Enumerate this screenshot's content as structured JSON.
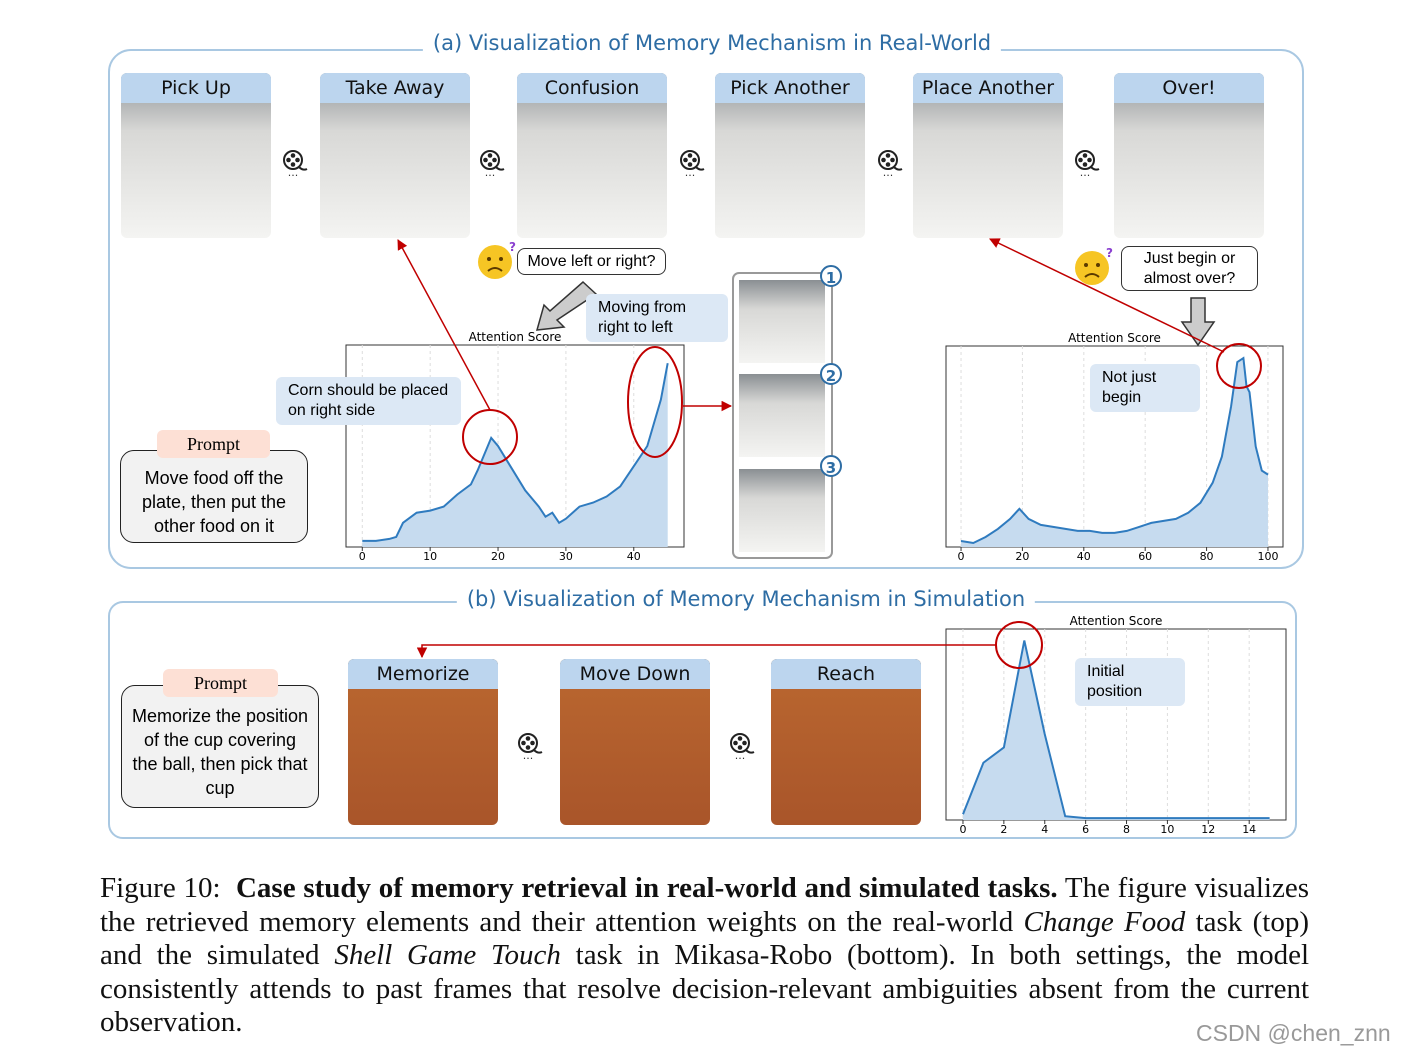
{
  "panel_a": {
    "title": "(a) Visualization of Memory Mechanism in Real-World",
    "frames": [
      "Pick Up",
      "Take Away",
      "Confusion",
      "Pick Another",
      "Place Another",
      "Over!"
    ],
    "ellipsis": "···",
    "question_1": "Move left or right?",
    "answer_1": "Moving from right to left",
    "hint_1": "Corn should be placed on right side",
    "question_2": "Just begin or almost over?",
    "answer_2": "Not just begin",
    "prompt_label": "Prompt",
    "prompt": "Move food off the plate, then put the other food on it",
    "memory_numbers": [
      "1",
      "2",
      "3"
    ]
  },
  "panel_b": {
    "title": "(b) Visualization of Memory Mechanism in Simulation",
    "frames": [
      "Memorize",
      "Move Down",
      "Reach"
    ],
    "prompt_label": "Prompt",
    "prompt": "Memorize the position of the cup covering the ball, then pick that cup",
    "answer": "Initial position"
  },
  "plots": [
    {
      "type": "area",
      "title": "Attention Score",
      "xlim": [
        -2.4,
        47.4
      ],
      "ylim": [
        0,
        1
      ],
      "xticks": [
        0,
        10,
        20,
        30,
        40
      ],
      "grid": true,
      "x": [
        0,
        2,
        4,
        5,
        6,
        8,
        10,
        12,
        14,
        16,
        17,
        19,
        20,
        22,
        24,
        26,
        27,
        28,
        29,
        30,
        32,
        34,
        36,
        38,
        40,
        42,
        44,
        45
      ],
      "values": [
        0.03,
        0.03,
        0.04,
        0.05,
        0.12,
        0.17,
        0.18,
        0.2,
        0.26,
        0.31,
        0.38,
        0.54,
        0.5,
        0.39,
        0.28,
        0.2,
        0.15,
        0.17,
        0.12,
        0.14,
        0.2,
        0.22,
        0.25,
        0.3,
        0.4,
        0.5,
        0.73,
        0.91
      ]
    },
    {
      "type": "area",
      "title": "Attention Score",
      "xlim": [
        -4.9,
        104.9
      ],
      "ylim": [
        0,
        1
      ],
      "xticks": [
        0,
        20,
        40,
        60,
        80,
        100
      ],
      "grid": true,
      "x": [
        0,
        4,
        8,
        12,
        16,
        19,
        22,
        26,
        30,
        34,
        38,
        42,
        46,
        50,
        54,
        58,
        62,
        66,
        70,
        74,
        78,
        82,
        85,
        88,
        90,
        92,
        93,
        94,
        96,
        98,
        100
      ],
      "values": [
        0.03,
        0.02,
        0.05,
        0.09,
        0.14,
        0.19,
        0.14,
        0.11,
        0.1,
        0.09,
        0.08,
        0.08,
        0.07,
        0.07,
        0.08,
        0.1,
        0.12,
        0.13,
        0.14,
        0.17,
        0.22,
        0.32,
        0.45,
        0.7,
        0.92,
        0.94,
        0.8,
        0.77,
        0.5,
        0.38,
        0.36
      ]
    },
    {
      "type": "area",
      "title": "Attention Score",
      "xlim": [
        -0.83,
        15.8
      ],
      "ylim": [
        0,
        1
      ],
      "xticks": [
        0,
        2,
        4,
        6,
        8,
        10,
        12,
        14
      ],
      "grid": true,
      "x": [
        0,
        1,
        2,
        3,
        4,
        5,
        6,
        8,
        10,
        12,
        14,
        15
      ],
      "values": [
        0.03,
        0.3,
        0.38,
        0.94,
        0.45,
        0.02,
        0.01,
        0.01,
        0.01,
        0.01,
        0.01,
        0.01
      ]
    }
  ],
  "caption": {
    "label": "Figure 10:",
    "bold": "Case study of memory retrieval in real-world and simulated tasks.",
    "text_1": "The figure visualizes the retrieved memory elements and their attention weights on the real-world",
    "italic_1": "Change Food",
    "text_2": "task (top) and the simulated",
    "italic_2": "Shell Game Touch",
    "text_3": "task in Mikasa-Robo (bottom). In both settings, the model consistently attends to past frames that resolve decision-relevant ambiguities absent from the current observation."
  },
  "watermark": "CSDN @chen_znn"
}
